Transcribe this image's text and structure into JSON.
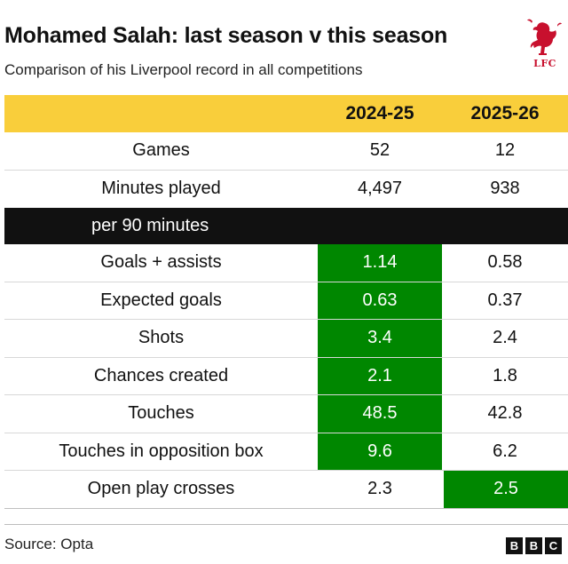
{
  "title": "Mohamed Salah: last season v this season",
  "subtitle": "Comparison of his Liverpool record in all competitions",
  "logo": {
    "icon": "liverbird-icon",
    "text": "LFC",
    "color": "#c8102e"
  },
  "columns": [
    "",
    "2024-25",
    "2025-26"
  ],
  "top_rows": [
    {
      "label": "Games",
      "a": "52",
      "b": "12"
    },
    {
      "label": "Minutes played",
      "a": "4,497",
      "b": "938"
    }
  ],
  "section_label": "per 90 minutes",
  "per90_rows": [
    {
      "label": "Goals + assists",
      "a": "1.14",
      "b": "0.58",
      "highlight": "a"
    },
    {
      "label": "Expected goals",
      "a": "0.63",
      "b": "0.37",
      "highlight": "a"
    },
    {
      "label": "Shots",
      "a": "3.4",
      "b": "2.4",
      "highlight": "a"
    },
    {
      "label": "Chances created",
      "a": "2.1",
      "b": "1.8",
      "highlight": "a"
    },
    {
      "label": "Touches",
      "a": "48.5",
      "b": "42.8",
      "highlight": "a"
    },
    {
      "label": "Touches in opposition box",
      "a": "9.6",
      "b": "6.2",
      "highlight": "a"
    },
    {
      "label": "Open play crosses",
      "a": "2.3",
      "b": "2.5",
      "highlight": "b"
    }
  ],
  "colors": {
    "header_bg": "#f9ce3b",
    "highlight": "#008700",
    "section_bg": "#111111"
  },
  "source": "Source: Opta",
  "brand": [
    "B",
    "B",
    "C"
  ]
}
